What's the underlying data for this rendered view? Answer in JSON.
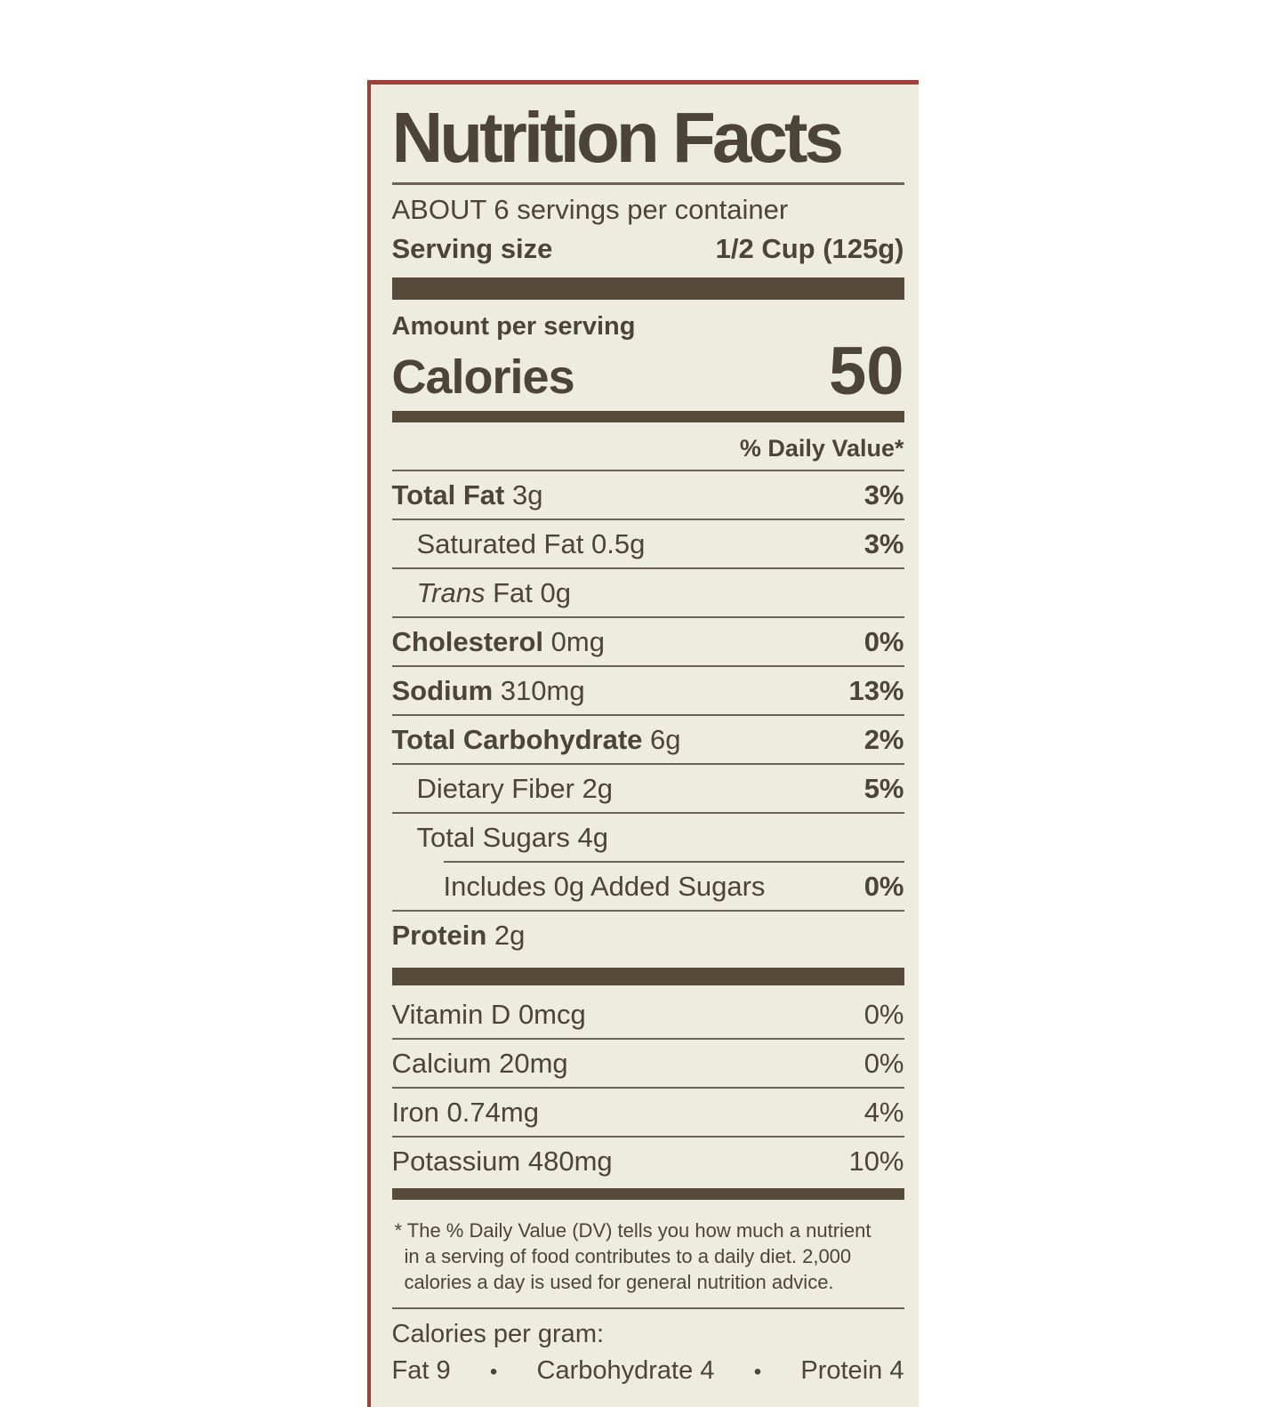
{
  "title": "Nutrition Facts",
  "servings_line": "ABOUT 6 servings per container",
  "serving_size_label": "Serving size",
  "serving_size_value": "1/2 Cup (125g)",
  "amount_per_serving": "Amount per serving",
  "calories_label": "Calories",
  "calories_value": "50",
  "daily_value_header": "% Daily Value*",
  "nutrients": [
    {
      "name": "Total Fat",
      "amount": "3g",
      "dv": "3%"
    },
    {
      "name": "Saturated Fat",
      "amount": "0.5g",
      "dv": "3%"
    },
    {
      "name_italic": "Trans",
      "name": "Fat",
      "amount": "0g",
      "dv": ""
    },
    {
      "name": "Cholesterol",
      "amount": "0mg",
      "dv": "0%"
    },
    {
      "name": "Sodium",
      "amount": "310mg",
      "dv": "13%"
    },
    {
      "name": "Total Carbohydrate",
      "amount": "6g",
      "dv": "2%"
    },
    {
      "name": "Dietary Fiber",
      "amount": "2g",
      "dv": "5%"
    },
    {
      "name": "Total Sugars",
      "amount": "4g",
      "dv": ""
    },
    {
      "name": "Includes 0g Added Sugars",
      "amount": "",
      "dv": "0%"
    },
    {
      "name": "Protein",
      "amount": "2g",
      "dv": ""
    }
  ],
  "micronutrients": [
    {
      "name": "Vitamin D",
      "amount": "0mcg",
      "dv": "0%"
    },
    {
      "name": "Calcium",
      "amount": "20mg",
      "dv": "0%"
    },
    {
      "name": "Iron",
      "amount": "0.74mg",
      "dv": "4%"
    },
    {
      "name": "Potassium",
      "amount": "480mg",
      "dv": "10%"
    }
  ],
  "footnote": {
    "asterisk": "*",
    "text": "The % Daily Value (DV) tells you how much a nutrient in a serving of food contributes to a daily diet. 2,000 calories a day is used for general nutrition advice."
  },
  "calories_per_gram": {
    "heading": "Calories per gram:",
    "fat": "Fat 9",
    "carbohydrate": "Carbohydrate 4",
    "protein": "Protein 4",
    "bullet": "•"
  },
  "colors": {
    "page_background": "#ffffff",
    "background": "#eeebdf",
    "label_text": "#4c4437",
    "bar": "#564b38",
    "rule": "#6a6253",
    "red_border": "#a23d37"
  }
}
